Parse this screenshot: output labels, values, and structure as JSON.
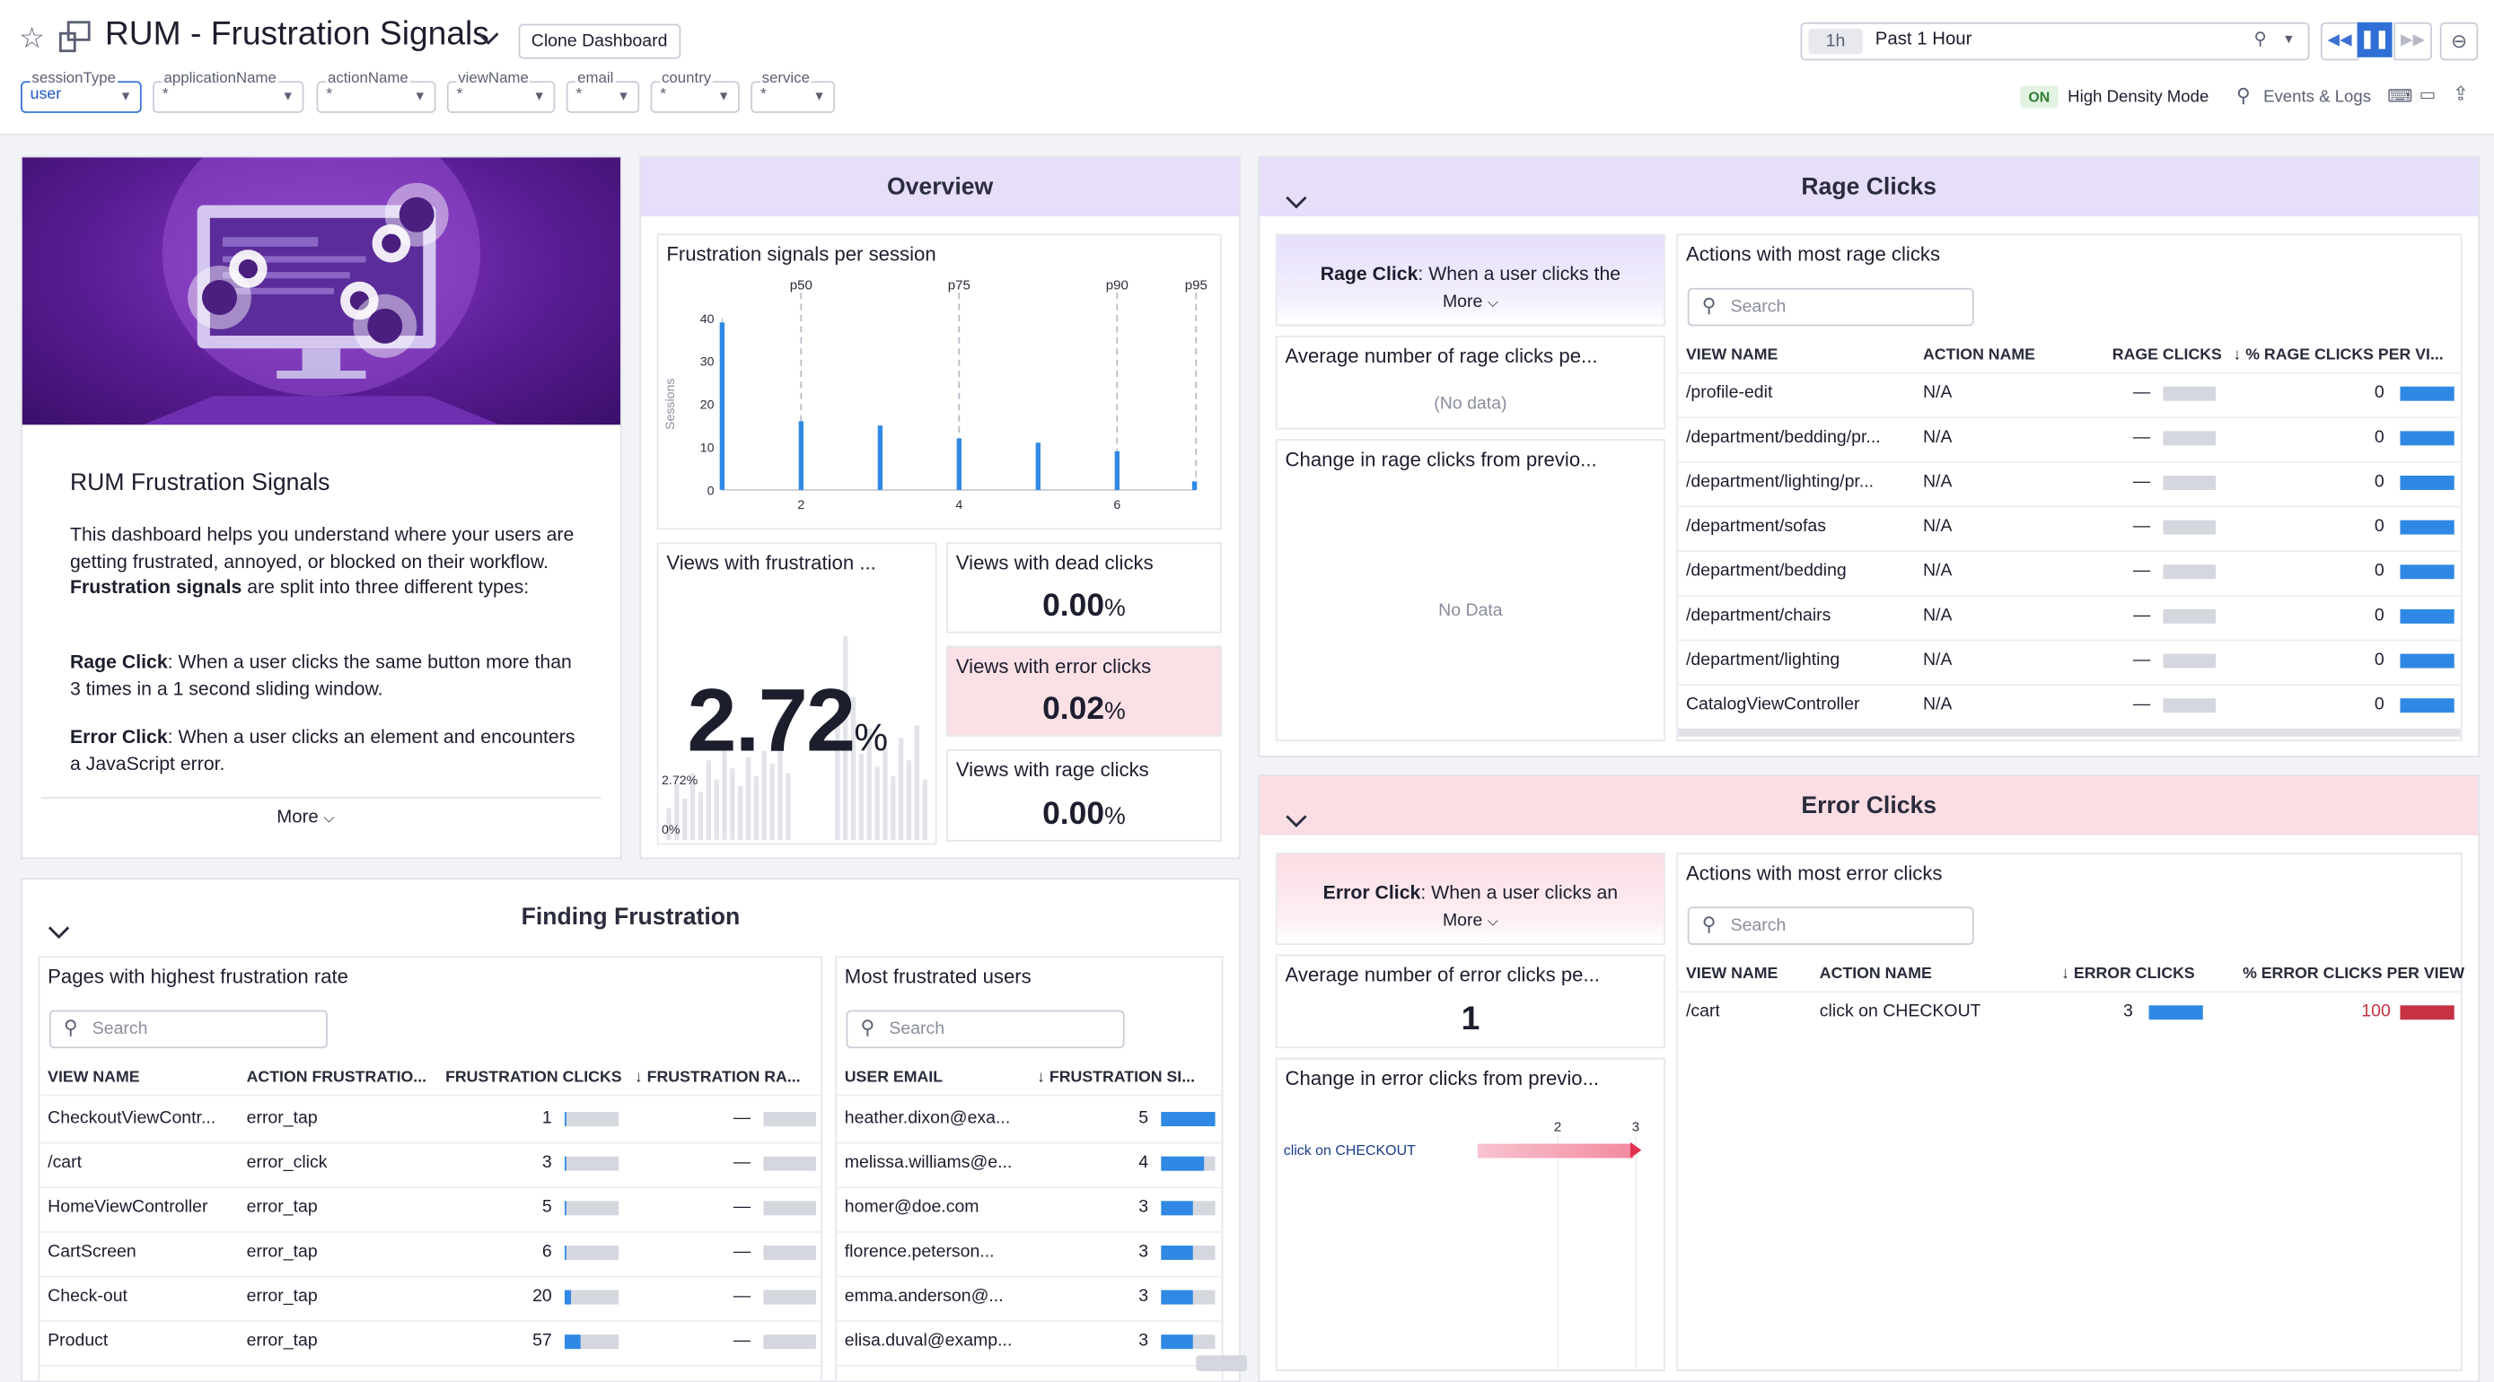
{
  "header": {
    "title": "RUM - Frustration Signals",
    "clone_label": "Clone Dashboard",
    "time_chip": "1h",
    "time_label": "Past 1 Hour",
    "high_density_badge": "ON",
    "high_density_label": "High Density Mode",
    "events_logs_label": "Events & Logs"
  },
  "template_vars": [
    {
      "name": "sessionType",
      "value": "user"
    },
    {
      "name": "applicationName",
      "value": "*"
    },
    {
      "name": "actionName",
      "value": "*"
    },
    {
      "name": "viewName",
      "value": "*"
    },
    {
      "name": "email",
      "value": "*"
    },
    {
      "name": "country",
      "value": "*"
    },
    {
      "name": "service",
      "value": "*"
    }
  ],
  "intro": {
    "heading": "RUM Frustration Signals",
    "p1a": "This dashboard helps you understand where your users are getting frustrated, annoyed, or blocked on their workflow. ",
    "p1b": "Frustration signals",
    "p1c": " are split into three different types:",
    "rage_term": "Rage Click",
    "rage_text": ": When a user clicks the same button more than 3 times in a 1 second sliding window.",
    "error_term": "Error Click",
    "error_text": ": When a user clicks an element and encounters a JavaScript error.",
    "more": "More"
  },
  "overview": {
    "title": "Overview",
    "chart_title": "Frustration signals per session",
    "views_frustration_title": "Views with frustration ...",
    "views_frustration_value": "2.72",
    "views_frustration_unit": "%",
    "spark_top": "2.72%",
    "spark_bottom": "0%",
    "dead_title": "Views with dead clicks",
    "dead_value": "0.00",
    "error_title": "Views with error clicks",
    "error_value": "0.02",
    "rage_title": "Views with rage clicks",
    "rage_value": "0.00",
    "pct": "%"
  },
  "chart_data": {
    "type": "bar",
    "title": "Frustration signals per session",
    "ylabel": "Sessions",
    "ylim": [
      0,
      40
    ],
    "yticks": [
      0,
      10,
      20,
      30,
      40
    ],
    "xticks": [
      2,
      4,
      6
    ],
    "x": [
      1,
      2,
      3,
      4,
      5,
      6,
      7
    ],
    "values": [
      39,
      16,
      15,
      12,
      11,
      9,
      2
    ],
    "percentile_markers": [
      {
        "label": "p50",
        "x": 2
      },
      {
        "label": "p75",
        "x": 4
      },
      {
        "label": "p90",
        "x": 6
      },
      {
        "label": "p95",
        "x": 7
      }
    ]
  },
  "rage": {
    "title": "Rage Clicks",
    "desc_term": "Rage Click",
    "desc_text": ": When a user clicks the",
    "more": "More",
    "avg_title": "Average number of rage clicks pe...",
    "avg_value": "(No data)",
    "change_title": "Change in rage clicks from previo...",
    "change_value": "No Data",
    "table_title": "Actions with most rage clicks",
    "search_placeholder": "Search",
    "columns": [
      "VIEW NAME",
      "ACTION NAME",
      "RAGE CLICKS",
      "% RAGE CLICKS PER VI..."
    ],
    "rows": [
      {
        "view": "/profile-edit",
        "action": "N/A",
        "clicks": "—",
        "pct": "0"
      },
      {
        "view": "/department/bedding/pr...",
        "action": "N/A",
        "clicks": "—",
        "pct": "0"
      },
      {
        "view": "/department/lighting/pr...",
        "action": "N/A",
        "clicks": "—",
        "pct": "0"
      },
      {
        "view": "/department/sofas",
        "action": "N/A",
        "clicks": "—",
        "pct": "0"
      },
      {
        "view": "/department/bedding",
        "action": "N/A",
        "clicks": "—",
        "pct": "0"
      },
      {
        "view": "/department/chairs",
        "action": "N/A",
        "clicks": "—",
        "pct": "0"
      },
      {
        "view": "/department/lighting",
        "action": "N/A",
        "clicks": "—",
        "pct": "0"
      },
      {
        "view": "CatalogViewController",
        "action": "N/A",
        "clicks": "—",
        "pct": "0"
      }
    ]
  },
  "error": {
    "title": "Error Clicks",
    "desc_term": "Error Click",
    "desc_text": ": When a user clicks an",
    "more": "More",
    "avg_title": "Average number of error clicks pe...",
    "avg_value": "1",
    "change_title": "Change in error clicks from previo...",
    "change_item": "click on CHECKOUT",
    "change_tick_a": "2",
    "change_tick_b": "3",
    "table_title": "Actions with most error clicks",
    "search_placeholder": "Search",
    "columns": [
      "VIEW NAME",
      "ACTION NAME",
      "ERROR CLICKS",
      "% ERROR CLICKS PER VIEW"
    ],
    "rows": [
      {
        "view": "/cart",
        "action": "click on CHECKOUT",
        "clicks": "3",
        "pct": "100"
      }
    ]
  },
  "finding": {
    "title": "Finding Frustration",
    "pages_title": "Pages with highest frustration rate",
    "pages_search": "Search",
    "pages_columns": [
      "VIEW NAME",
      "ACTION FRUSTRATIO...",
      "FRUSTRATION CLICKS",
      "FRUSTRATION RA..."
    ],
    "pages_rows": [
      {
        "view": "CheckoutViewContr...",
        "action": "error_tap",
        "clicks": "1",
        "rate": "—"
      },
      {
        "view": "/cart",
        "action": "error_click",
        "clicks": "3",
        "rate": "—"
      },
      {
        "view": "HomeViewController",
        "action": "error_tap",
        "clicks": "5",
        "rate": "—"
      },
      {
        "view": "CartScreen",
        "action": "error_tap",
        "clicks": "6",
        "rate": "—"
      },
      {
        "view": "Check-out",
        "action": "error_tap",
        "clicks": "20",
        "rate": "—"
      },
      {
        "view": "Product",
        "action": "error_tap",
        "clicks": "57",
        "rate": "—"
      }
    ],
    "users_title": "Most frustrated users",
    "users_search": "Search",
    "users_columns": [
      "USER EMAIL",
      "FRUSTRATION SI..."
    ],
    "users_rows": [
      {
        "email": "heather.dixon@exa...",
        "count": "5"
      },
      {
        "email": "melissa.williams@e...",
        "count": "4"
      },
      {
        "email": "homer@doe.com",
        "count": "3"
      },
      {
        "email": "florence.peterson...",
        "count": "3"
      },
      {
        "email": "emma.anderson@...",
        "count": "3"
      },
      {
        "email": "elisa.duval@examp...",
        "count": "3"
      }
    ]
  }
}
